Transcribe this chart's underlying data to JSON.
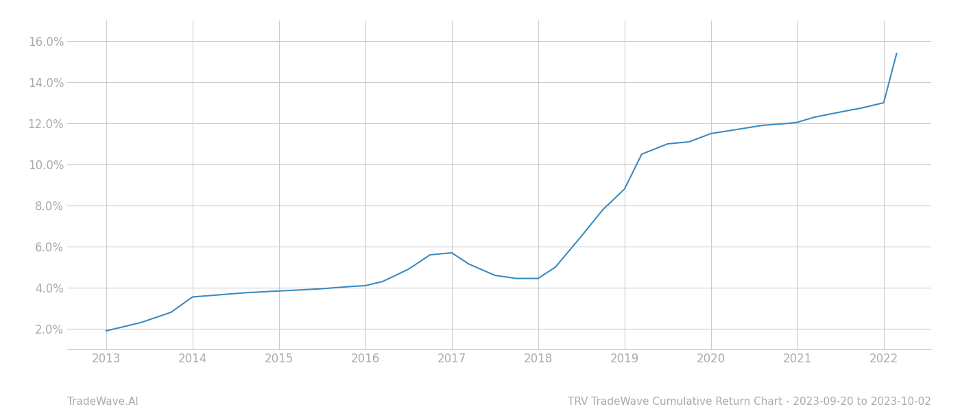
{
  "x_years": [
    2013.0,
    2013.4,
    2013.75,
    2014.0,
    2014.3,
    2014.6,
    2014.9,
    2015.2,
    2015.5,
    2015.8,
    2016.0,
    2016.2,
    2016.5,
    2016.75,
    2017.0,
    2017.2,
    2017.5,
    2017.75,
    2018.0,
    2018.2,
    2018.5,
    2018.75,
    2019.0,
    2019.2,
    2019.5,
    2019.75,
    2020.0,
    2020.3,
    2020.6,
    2020.9,
    2021.0,
    2021.2,
    2021.5,
    2021.75,
    2022.0,
    2022.15
  ],
  "y_values": [
    1.9,
    2.3,
    2.8,
    3.55,
    3.65,
    3.75,
    3.82,
    3.88,
    3.95,
    4.05,
    4.1,
    4.3,
    4.9,
    5.6,
    5.7,
    5.15,
    4.6,
    4.45,
    4.45,
    5.0,
    6.5,
    7.8,
    8.8,
    10.5,
    11.0,
    11.1,
    11.5,
    11.7,
    11.9,
    12.0,
    12.05,
    12.3,
    12.55,
    12.75,
    13.0,
    15.4
  ],
  "line_color": "#3a8abf",
  "background_color": "#ffffff",
  "grid_color": "#cccccc",
  "ylim": [
    1.0,
    17.0
  ],
  "xlim": [
    2012.55,
    2022.55
  ],
  "yticks": [
    2.0,
    4.0,
    6.0,
    8.0,
    10.0,
    12.0,
    14.0,
    16.0
  ],
  "xticks": [
    2013,
    2014,
    2015,
    2016,
    2017,
    2018,
    2019,
    2020,
    2021,
    2022
  ],
  "footer_left": "TradeWave.AI",
  "footer_right": "TRV TradeWave Cumulative Return Chart - 2023-09-20 to 2023-10-02",
  "footer_color": "#aaaaaa",
  "footer_fontsize": 11,
  "line_width": 1.5,
  "tick_label_color": "#aaaaaa",
  "tick_label_fontsize": 12
}
